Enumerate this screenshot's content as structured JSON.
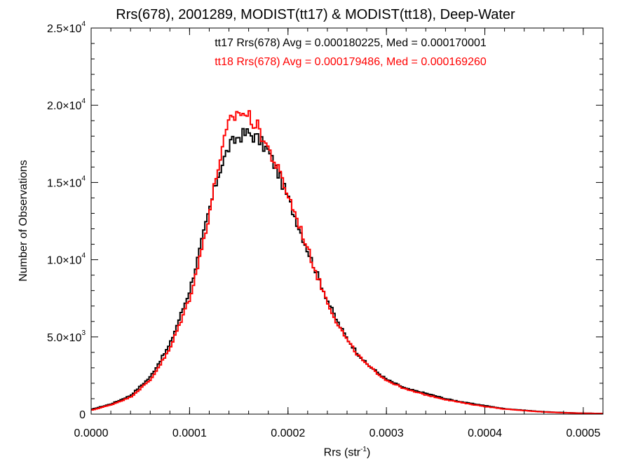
{
  "title": "Rrs(678), 2001289, MODIST(tt17) & MODIST(tt18), Deep-Water",
  "annotations": [
    {
      "text": "tt17 Rrs(678) Avg = 0.000180225, Med = 0.000170001",
      "color": "#000000"
    },
    {
      "text": "tt18 Rrs(678) Avg = 0.000179486, Med = 0.000169260",
      "color": "#ff0000"
    }
  ],
  "xlabel": {
    "main": "Rrs (str",
    "sup": "-1",
    "close": ")"
  },
  "ylabel": "Number of Observations",
  "chart_data": {
    "type": "line",
    "step": true,
    "xlim": [
      0,
      0.00052
    ],
    "ylim": [
      0,
      25000
    ],
    "x_ticks": [
      "0.0000",
      "0.0001",
      "0.0002",
      "0.0003",
      "0.0004",
      "0.0005"
    ],
    "y_ticks": [
      {
        "value": 0,
        "mantissa": "0",
        "exp": ""
      },
      {
        "value": 5000,
        "mantissa": "5.0×10",
        "exp": "3"
      },
      {
        "value": 10000,
        "mantissa": "1.0×10",
        "exp": "4"
      },
      {
        "value": 15000,
        "mantissa": "1.5×10",
        "exp": "4"
      },
      {
        "value": 20000,
        "mantissa": "2.0×10",
        "exp": "4"
      },
      {
        "value": 25000,
        "mantissa": "2.5×10",
        "exp": "4"
      }
    ],
    "series": [
      {
        "color": "#000000",
        "x": [
          0,
          2e-05,
          4e-05,
          6e-05,
          8e-05,
          0.0001,
          0.00011,
          0.00012,
          0.00013,
          0.00014,
          0.00015,
          0.00016,
          0.00017,
          0.00018,
          0.00019,
          0.0002,
          0.00021,
          0.00022,
          0.00023,
          0.00024,
          0.00025,
          0.00026,
          0.00027,
          0.00028,
          0.0003,
          0.00032,
          0.00034,
          0.00036,
          0.00038,
          0.0004,
          0.00042,
          0.00044,
          0.00046,
          0.00048,
          0.0005,
          0.00052
        ],
        "y": [
          300,
          650,
          1200,
          2400,
          4500,
          8000,
          10500,
          13200,
          15700,
          17300,
          18000,
          18200,
          17800,
          17000,
          15600,
          14000,
          12300,
          10600,
          9000,
          7400,
          6000,
          4900,
          4000,
          3250,
          2250,
          1650,
          1350,
          1000,
          750,
          550,
          350,
          250,
          150,
          100,
          60,
          40
        ]
      },
      {
        "color": "#ff0000",
        "x": [
          0,
          2e-05,
          4e-05,
          6e-05,
          8e-05,
          0.0001,
          0.00011,
          0.00012,
          0.00013,
          0.00014,
          0.00015,
          0.00016,
          0.00017,
          0.00018,
          0.00019,
          0.0002,
          0.00021,
          0.00022,
          0.00023,
          0.00024,
          0.00025,
          0.00026,
          0.00027,
          0.00028,
          0.0003,
          0.00032,
          0.00034,
          0.00036,
          0.00038,
          0.0004,
          0.00042,
          0.00044,
          0.00046,
          0.00048,
          0.0005,
          0.00052
        ],
        "y": [
          250,
          600,
          1100,
          2200,
          4200,
          7500,
          10000,
          13000,
          16300,
          18800,
          19600,
          19300,
          18500,
          17200,
          15800,
          14200,
          12500,
          10700,
          8900,
          7300,
          5900,
          4800,
          3900,
          3200,
          2200,
          1600,
          1250,
          950,
          700,
          500,
          330,
          230,
          140,
          90,
          55,
          35
        ]
      }
    ]
  }
}
